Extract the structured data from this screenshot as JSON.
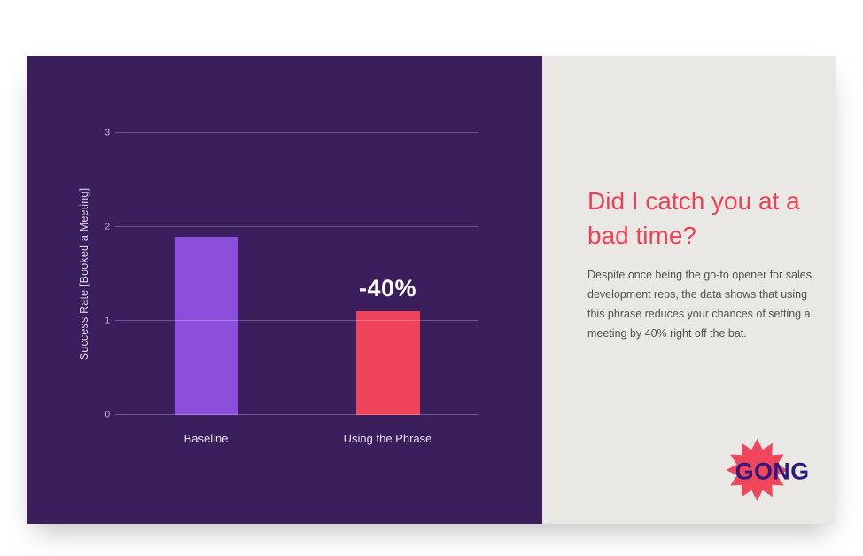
{
  "chart_data": {
    "type": "bar",
    "title": "",
    "xlabel": "",
    "ylabel": "Success Rate [Booked a Meeting]",
    "categories": [
      "Baseline",
      "Using the Phrase"
    ],
    "values": [
      1.9,
      1.1
    ],
    "bar_colors": [
      "#8b4fdb",
      "#f0445a"
    ],
    "yticks": [
      0,
      1,
      2,
      3
    ],
    "ylim": [
      0,
      3
    ],
    "grid": true,
    "legend": "none",
    "annotations": [
      {
        "text": "-40%",
        "category_index": 1
      }
    ]
  },
  "panel": {
    "heading": "Did I catch you at a bad time?",
    "body": "Despite once being the go-to opener for sales development reps, the data shows that using this phrase reduces your chances of setting a meeting by 40% right off the bat.",
    "logo": "GONG"
  },
  "colors": {
    "chart_bg": "#3a1f5c",
    "panel_bg": "#eae8e5",
    "heading": "#ef4156",
    "body_text": "#55504b",
    "logo_text": "#2b1a7e",
    "logo_burst": "#f0455a"
  }
}
